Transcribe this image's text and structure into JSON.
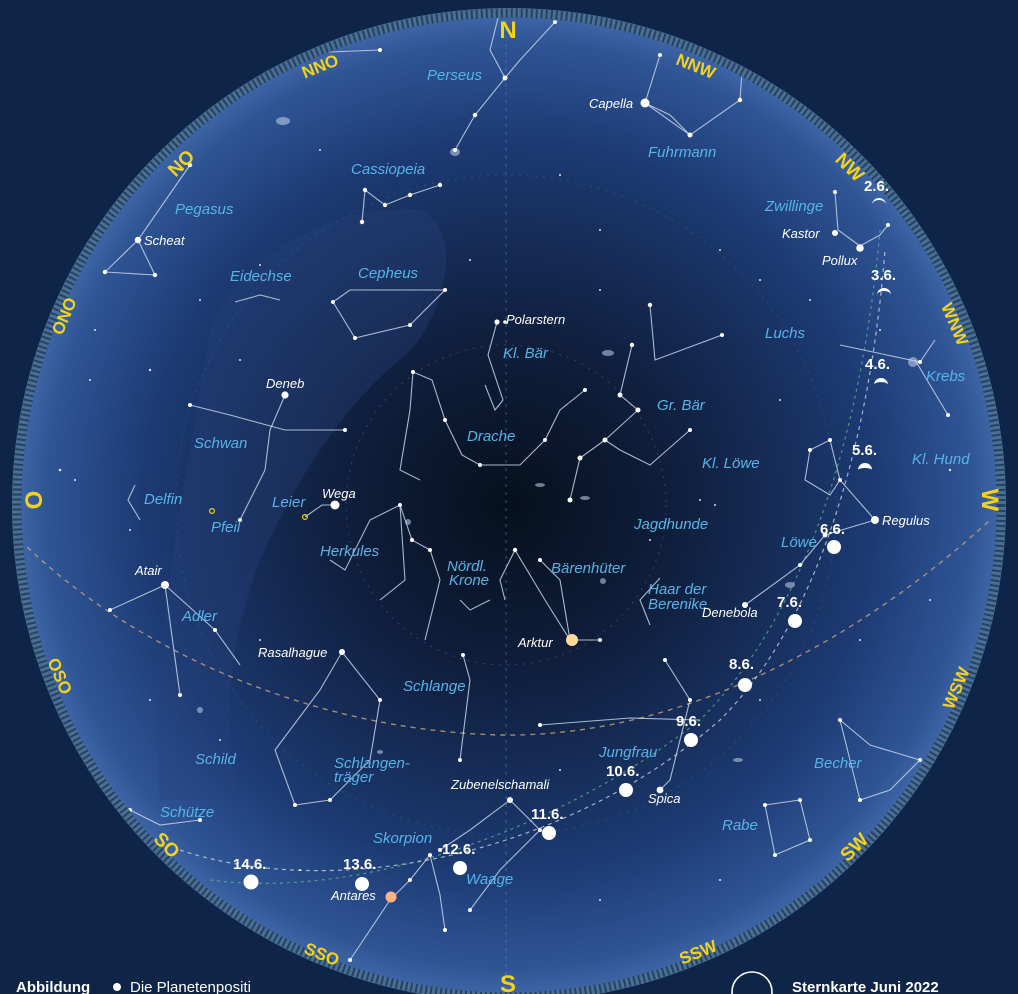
{
  "directions": [
    {
      "id": "n",
      "label": "N"
    },
    {
      "id": "nnw",
      "label": "NNW"
    },
    {
      "id": "nw",
      "label": "NW"
    },
    {
      "id": "wnw",
      "label": "WNW"
    },
    {
      "id": "w",
      "label": "W"
    },
    {
      "id": "wsw",
      "label": "WSW"
    },
    {
      "id": "sw",
      "label": "SW"
    },
    {
      "id": "ssw",
      "label": "SSW"
    },
    {
      "id": "s",
      "label": "S"
    },
    {
      "id": "sso",
      "label": "SSO"
    },
    {
      "id": "so",
      "label": "SO"
    },
    {
      "id": "oso",
      "label": "OSO"
    },
    {
      "id": "o",
      "label": "O"
    },
    {
      "id": "ono",
      "label": "ONO"
    },
    {
      "id": "no",
      "label": "NO"
    },
    {
      "id": "nno",
      "label": "NNO"
    }
  ],
  "constellations": [
    {
      "id": "perseus",
      "label": "Perseus"
    },
    {
      "id": "fuhrmann",
      "label": "Fuhrmann"
    },
    {
      "id": "cassiopeia",
      "label": "Cassiopeia"
    },
    {
      "id": "pegasus",
      "label": "Pegasus"
    },
    {
      "id": "zwillinge",
      "label": "Zwillinge"
    },
    {
      "id": "eidechse",
      "label": "Eidechse"
    },
    {
      "id": "cepheus",
      "label": "Cepheus"
    },
    {
      "id": "kl-baer",
      "label": "Kl. Bär"
    },
    {
      "id": "luchs",
      "label": "Luchs"
    },
    {
      "id": "krebs",
      "label": "Krebs"
    },
    {
      "id": "gr-baer",
      "label": "Gr. Bär"
    },
    {
      "id": "drache",
      "label": "Drache"
    },
    {
      "id": "schwan",
      "label": "Schwan"
    },
    {
      "id": "kl-loewe",
      "label": "Kl. Löwe"
    },
    {
      "id": "kl-hund",
      "label": "Kl. Hund"
    },
    {
      "id": "delfin",
      "label": "Delfin"
    },
    {
      "id": "leier",
      "label": "Leier"
    },
    {
      "id": "pfeil",
      "label": "Pfeil"
    },
    {
      "id": "jagdhunde",
      "label": "Jagdhunde"
    },
    {
      "id": "herkules",
      "label": "Herkules"
    },
    {
      "id": "loewe",
      "label": "Löwe"
    },
    {
      "id": "noerdl-krone-1",
      "label": "Nördl."
    },
    {
      "id": "noerdl-krone-2",
      "label": "Krone"
    },
    {
      "id": "baerenhueter",
      "label": "Bärenhüter"
    },
    {
      "id": "haar-1",
      "label": "Haar der"
    },
    {
      "id": "haar-2",
      "label": "Berenike"
    },
    {
      "id": "adler",
      "label": "Adler"
    },
    {
      "id": "schlange",
      "label": "Schlange"
    },
    {
      "id": "schild",
      "label": "Schild"
    },
    {
      "id": "schlangentraeger-1",
      "label": "Schlangen-"
    },
    {
      "id": "schlangentraeger-2",
      "label": "träger"
    },
    {
      "id": "jungfrau",
      "label": "Jungfrau"
    },
    {
      "id": "becher",
      "label": "Becher"
    },
    {
      "id": "schuetze",
      "label": "Schütze"
    },
    {
      "id": "skorpion",
      "label": "Skorpion"
    },
    {
      "id": "rabe",
      "label": "Rabe"
    },
    {
      "id": "waage",
      "label": "Waage"
    }
  ],
  "stars": [
    {
      "id": "capella",
      "label": "Capella"
    },
    {
      "id": "scheat",
      "label": "Scheat"
    },
    {
      "id": "kastor",
      "label": "Kastor"
    },
    {
      "id": "pollux",
      "label": "Pollux"
    },
    {
      "id": "polarstern",
      "label": "Polarstern"
    },
    {
      "id": "deneb",
      "label": "Deneb"
    },
    {
      "id": "wega",
      "label": "Wega"
    },
    {
      "id": "regulus",
      "label": "Regulus"
    },
    {
      "id": "atair",
      "label": "Atair"
    },
    {
      "id": "denebola",
      "label": "Denebola"
    },
    {
      "id": "arktur",
      "label": "Arktur"
    },
    {
      "id": "rasalhague",
      "label": "Rasalhague"
    },
    {
      "id": "zubenelschamali",
      "label": "Zubenelschamali"
    },
    {
      "id": "spica",
      "label": "Spica"
    },
    {
      "id": "antares",
      "label": "Antares"
    }
  ],
  "moon_dates": [
    {
      "id": "d2",
      "label": "2.6."
    },
    {
      "id": "d3",
      "label": "3.6."
    },
    {
      "id": "d4",
      "label": "4.6."
    },
    {
      "id": "d5",
      "label": "5.6."
    },
    {
      "id": "d6",
      "label": "6.6."
    },
    {
      "id": "d7",
      "label": "7.6."
    },
    {
      "id": "d8",
      "label": "8.6."
    },
    {
      "id": "d9",
      "label": "9.6."
    },
    {
      "id": "d10",
      "label": "10.6."
    },
    {
      "id": "d11",
      "label": "11.6."
    },
    {
      "id": "d12",
      "label": "12.6."
    },
    {
      "id": "d13",
      "label": "13.6."
    },
    {
      "id": "d14",
      "label": "14.6."
    }
  ],
  "footer": {
    "caption_bold": "Abbildung",
    "caption_rest": "Die Planetenpositi",
    "title": "Sternkarte Juni 2022"
  },
  "colors": {
    "direction_label": "#f2d21b",
    "constellation_label": "#56b4e6",
    "star_label": "#ffffff",
    "background": "#0f2548"
  }
}
